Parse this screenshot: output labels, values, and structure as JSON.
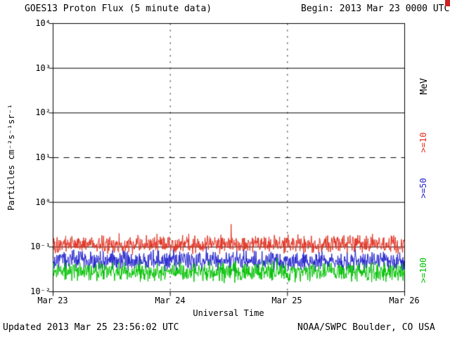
{
  "header": {
    "title": "GOES13 Proton Flux (5 minute data)",
    "begin_label": "Begin: 2013 Mar 23 0000 UTC"
  },
  "footer": {
    "updated": "Updated 2013 Mar 25 23:56:02 UTC",
    "source": "NOAA/SWPC Boulder, CO USA"
  },
  "right_axis": {
    "unit_label": "MeV",
    "series_labels": [
      {
        "label": ">=10",
        "color": "#e03020"
      },
      {
        "label": ">=50",
        "color": "#2222cc"
      },
      {
        "label": ">=100",
        "color": "#00c000"
      }
    ]
  },
  "colors": {
    "axis": "#000000",
    "background": "#ffffff",
    "corner_artifact": "#cc2222"
  },
  "chart_data": {
    "type": "line",
    "title": "GOES13 Proton Flux (5 minute data)",
    "xlabel": "Universal Time",
    "ylabel": "Particles cm⁻²s⁻¹sr⁻¹",
    "x_range_days": 3,
    "x_start": "2013 Mar 23 0000 UTC",
    "x_end": "2013 Mar 26 0000 UTC",
    "x_tick_labels": [
      "Mar 23",
      "Mar 24",
      "Mar 25",
      "Mar 26"
    ],
    "y_scale": "log10",
    "y_min": 0.01,
    "y_max": 10000,
    "y_tick_labels": [
      "10⁴",
      "10³",
      "10²",
      "10¹",
      "10⁰",
      "10⁻¹",
      "10⁻²"
    ],
    "grid": {
      "h_solid_values": [
        1000,
        100,
        1,
        0.1
      ],
      "h_dashed_values": [
        10
      ],
      "v_dotted_day_indices": [
        1,
        2
      ]
    },
    "samples_per_day": 288,
    "series": [
      {
        "name": ">=10 MeV",
        "color": "#e03020",
        "baseline_flux": 0.115,
        "noise_spread_log10": 0.24,
        "spike_prob": 0.04,
        "spike_max_log10": 0.28,
        "seed": 101,
        "approx_range": [
          0.06,
          0.35
        ]
      },
      {
        "name": ">=50 MeV",
        "color": "#2222cc",
        "baseline_flux": 0.05,
        "noise_spread_log10": 0.26,
        "spike_prob": 0.012,
        "spike_max_log10": 0.2,
        "seed": 202,
        "approx_range": [
          0.025,
          0.12
        ]
      },
      {
        "name": ">=100 MeV",
        "color": "#00c000",
        "baseline_flux": 0.028,
        "noise_spread_log10": 0.26,
        "spike_prob": 0.008,
        "spike_max_log10": 0.15,
        "seed": 303,
        "approx_range": [
          0.014,
          0.06
        ]
      }
    ]
  }
}
